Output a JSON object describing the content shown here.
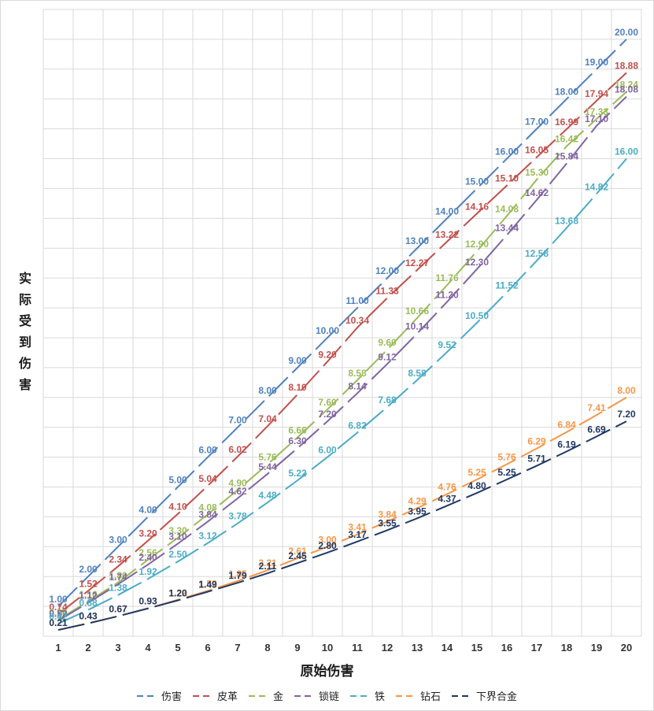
{
  "chart_data": {
    "type": "line",
    "title": "",
    "xlabel": "原始伤害",
    "ylabel": "实际受到伤害",
    "x": [
      1,
      2,
      3,
      4,
      5,
      6,
      7,
      8,
      9,
      10,
      11,
      12,
      13,
      14,
      15,
      16,
      17,
      18,
      19,
      20
    ],
    "ylim": [
      0,
      21
    ],
    "grid": true,
    "legend_position": "bottom",
    "line_style": "dashed",
    "series": [
      {
        "name": "伤害",
        "color": "#4f81bd",
        "values": [
          1.0,
          2.0,
          3.0,
          4.0,
          5.0,
          6.0,
          7.0,
          8.0,
          9.0,
          10.0,
          11.0,
          12.0,
          13.0,
          14.0,
          15.0,
          16.0,
          17.0,
          18.0,
          19.0,
          20.0
        ]
      },
      {
        "name": "皮革",
        "color": "#c0504d",
        "values": [
          0.74,
          1.52,
          2.34,
          3.2,
          4.1,
          5.04,
          6.02,
          7.04,
          8.1,
          9.2,
          10.34,
          11.33,
          12.27,
          13.22,
          14.16,
          15.1,
          16.05,
          16.99,
          17.94,
          18.88
        ]
      },
      {
        "name": "金",
        "color": "#9bbb59",
        "values": [
          0.56,
          1.16,
          1.8,
          2.56,
          3.3,
          4.08,
          4.9,
          5.76,
          6.66,
          7.6,
          8.58,
          9.6,
          10.66,
          11.76,
          12.9,
          14.08,
          15.3,
          16.42,
          17.33,
          18.24
        ]
      },
      {
        "name": "锁链",
        "color": "#8064a2",
        "values": [
          0.52,
          1.12,
          1.74,
          2.4,
          3.1,
          3.84,
          4.62,
          5.44,
          6.3,
          7.2,
          8.14,
          9.12,
          10.14,
          11.2,
          12.3,
          13.44,
          14.62,
          15.84,
          17.1,
          18.08
        ]
      },
      {
        "name": "铁",
        "color": "#4bacc6",
        "values": [
          0.42,
          0.88,
          1.38,
          1.92,
          2.5,
          3.12,
          3.78,
          4.48,
          5.22,
          6.0,
          6.82,
          7.68,
          8.58,
          9.52,
          10.5,
          11.52,
          12.58,
          13.68,
          14.82,
          16.0
        ]
      },
      {
        "name": "钻石",
        "color": "#f79646",
        "values": [
          0.21,
          0.43,
          0.67,
          0.93,
          1.22,
          1.52,
          1.85,
          2.21,
          2.61,
          3.0,
          3.41,
          3.84,
          4.29,
          4.76,
          5.25,
          5.76,
          6.29,
          6.84,
          7.41,
          8.0
        ]
      },
      {
        "name": "下界合金",
        "color": "#1f3864",
        "values": [
          0.21,
          0.43,
          0.67,
          0.93,
          1.2,
          1.49,
          1.79,
          2.11,
          2.45,
          2.8,
          3.17,
          3.55,
          3.95,
          4.37,
          4.8,
          5.25,
          5.71,
          6.19,
          6.69,
          7.2
        ]
      }
    ]
  }
}
